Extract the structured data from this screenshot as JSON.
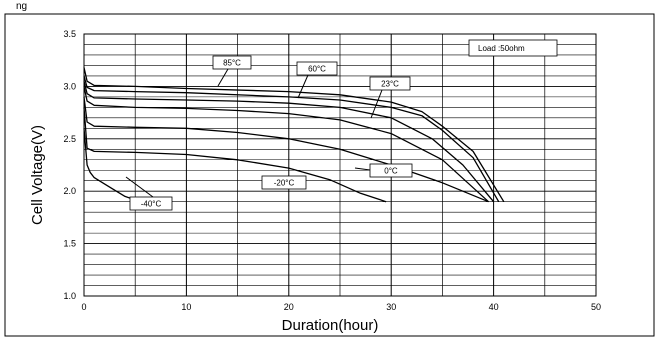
{
  "header_text": "ng",
  "chart_data": {
    "type": "line",
    "xlabel": "Duration(hour)",
    "ylabel": "Cell Voltage(V)",
    "xlim": [
      0,
      50
    ],
    "ylim": [
      1.0,
      3.5
    ],
    "x_ticks": [
      "0",
      "10",
      "20",
      "30",
      "40",
      "50"
    ],
    "y_ticks": [
      "1.0",
      "1.5",
      "2.0",
      "2.5",
      "3.0",
      "3.5"
    ],
    "grid": true,
    "annotation": "Load :50ohm",
    "series": [
      {
        "name": "85°C",
        "x": [
          0,
          0.3,
          1,
          5,
          10,
          20,
          25,
          30,
          33,
          35,
          38,
          41
        ],
        "y": [
          3.18,
          3.05,
          3.01,
          3.0,
          2.98,
          2.95,
          2.92,
          2.85,
          2.76,
          2.62,
          2.38,
          1.9
        ]
      },
      {
        "name": "60°C",
        "x": [
          0,
          0.3,
          1,
          5,
          10,
          20,
          25,
          30,
          33,
          35,
          38,
          40.5
        ],
        "y": [
          3.1,
          2.99,
          2.96,
          2.95,
          2.94,
          2.9,
          2.87,
          2.8,
          2.72,
          2.58,
          2.32,
          1.9
        ]
      },
      {
        "name": "23°C",
        "x": [
          0,
          0.3,
          1,
          5,
          10,
          15,
          20,
          25,
          30,
          34,
          37,
          40
        ],
        "y": [
          3.05,
          2.93,
          2.89,
          2.88,
          2.87,
          2.86,
          2.84,
          2.8,
          2.7,
          2.5,
          2.25,
          1.9
        ]
      },
      {
        "name": "",
        "x": [
          0,
          0.3,
          1,
          5,
          10,
          15,
          20,
          25,
          30,
          35,
          39.5
        ],
        "y": [
          3.0,
          2.86,
          2.82,
          2.8,
          2.79,
          2.77,
          2.74,
          2.68,
          2.55,
          2.3,
          1.9
        ]
      },
      {
        "name": "0°C",
        "x": [
          0,
          0.3,
          1,
          5,
          10,
          15,
          20,
          25,
          30,
          35,
          39.5
        ],
        "y": [
          2.9,
          2.66,
          2.62,
          2.61,
          2.6,
          2.56,
          2.5,
          2.4,
          2.25,
          2.08,
          1.9
        ]
      },
      {
        "name": "-20°C",
        "x": [
          0,
          0.3,
          1,
          5,
          10,
          15,
          20,
          24,
          27,
          29.5
        ],
        "y": [
          2.8,
          2.41,
          2.38,
          2.37,
          2.35,
          2.3,
          2.22,
          2.11,
          1.98,
          1.9
        ]
      },
      {
        "name": "-40°C",
        "x": [
          0,
          0.3,
          0.6,
          1,
          2,
          3,
          4,
          5.5
        ],
        "y": [
          2.6,
          2.25,
          2.18,
          2.13,
          2.07,
          2.01,
          1.95,
          1.9
        ]
      }
    ],
    "labels": [
      {
        "text": "85°C"
      },
      {
        "text": "60°C"
      },
      {
        "text": "23°C"
      },
      {
        "text": "0°C"
      },
      {
        "text": "-20°C"
      },
      {
        "text": "-40°C"
      }
    ]
  }
}
